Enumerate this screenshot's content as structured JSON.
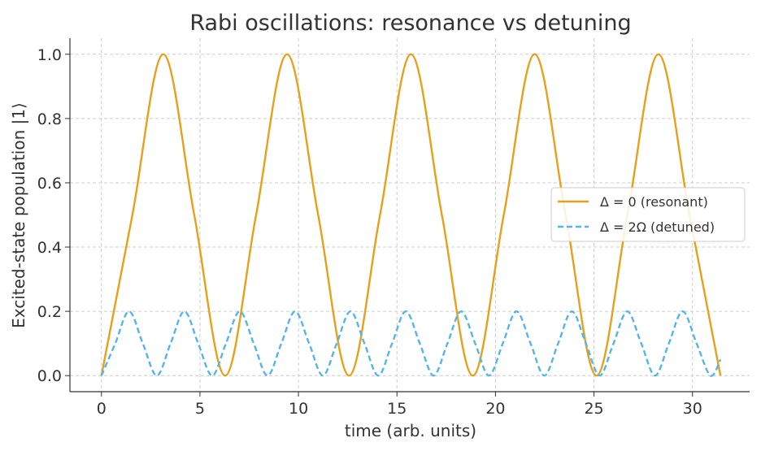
{
  "chart_data": {
    "type": "line",
    "title": "Rabi oscillations: resonance vs detuning",
    "xlabel": "time (arb. units)",
    "ylabel": "Excited-state population |1⟩",
    "xlim": [
      -1.6,
      32.9
    ],
    "ylim": [
      -0.05,
      1.05
    ],
    "x_ticks": [
      0,
      5,
      10,
      15,
      20,
      25,
      30
    ],
    "y_ticks": [
      0.0,
      0.2,
      0.4,
      0.6,
      0.8,
      1.0
    ],
    "x_tick_labels": [
      "0",
      "5",
      "10",
      "15",
      "20",
      "25",
      "30"
    ],
    "y_tick_labels": [
      "0.0",
      "0.2",
      "0.4",
      "0.6",
      "0.8",
      "1.0"
    ],
    "grid": true,
    "legend_position": "center-right",
    "series": [
      {
        "name": "Δ = 0 (resonant)",
        "color": "#E6A11C",
        "style": "solid",
        "x": [
          0,
          1.57,
          3.14,
          4.71,
          6.28,
          7.85,
          9.42,
          11.0,
          12.57,
          14.14,
          15.71,
          17.28,
          18.85,
          20.42,
          21.99,
          23.56,
          25.13,
          26.7,
          28.27,
          29.85,
          31.42
        ],
        "y": [
          0,
          0.5,
          1,
          0.5,
          0,
          0.5,
          1,
          0.5,
          0,
          0.5,
          1,
          0.5,
          0,
          0.5,
          1,
          0.5,
          0,
          0.5,
          1,
          0.5,
          0
        ]
      },
      {
        "name": "Δ = 2Ω (detuned)",
        "color": "#56B4E9",
        "style": "dashed",
        "x": [
          0,
          0.7,
          1.4,
          2.1,
          2.81,
          3.51,
          4.21,
          4.91,
          5.62,
          6.32,
          7.02,
          7.73,
          8.43,
          9.13,
          9.83,
          10.54,
          11.24,
          11.94,
          12.64,
          13.35,
          14.05,
          14.75,
          15.45,
          16.16,
          16.86,
          17.56,
          18.26,
          18.97,
          19.67,
          20.37,
          21.07,
          21.78,
          22.48,
          23.18,
          23.88,
          24.59,
          25.29,
          25.99,
          26.69,
          27.4,
          28.1,
          28.8,
          29.5,
          30.21,
          30.91,
          31.42
        ],
        "y": [
          0,
          0.1,
          0.2,
          0.1,
          0,
          0.1,
          0.2,
          0.1,
          0,
          0.1,
          0.2,
          0.1,
          0,
          0.1,
          0.2,
          0.1,
          0,
          0.1,
          0.2,
          0.1,
          0,
          0.1,
          0.2,
          0.1,
          0,
          0.1,
          0.2,
          0.1,
          0,
          0.1,
          0.2,
          0.1,
          0,
          0.1,
          0.2,
          0.1,
          0,
          0.1,
          0.2,
          0.1,
          0,
          0.1,
          0.2,
          0.1,
          0,
          0.05
        ]
      }
    ]
  }
}
